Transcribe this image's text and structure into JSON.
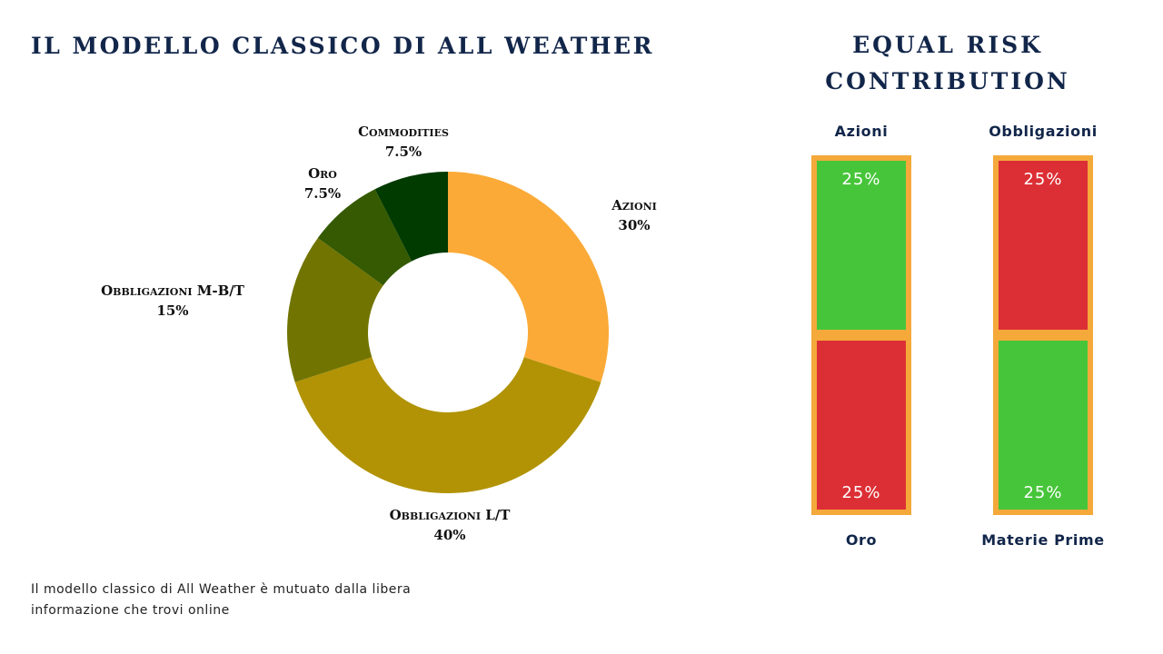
{
  "title_left": "IL MODELLO CLASSICO DI ALL WEATHER",
  "title_right": "EQUAL RISK CONTRIBUTION",
  "chart_data": [
    {
      "type": "pie",
      "variant": "donut",
      "start": "top",
      "direction": "clockwise",
      "slices": [
        {
          "label": "Azioni",
          "pct_label": "30%",
          "value": 30,
          "color": "#fbaa37"
        },
        {
          "label": "Obbligazioni L/T",
          "pct_label": "40%",
          "value": 40,
          "color": "#b19305"
        },
        {
          "label": "Obbligazioni M-B/T",
          "pct_label": "15%",
          "value": 15,
          "color": "#727402"
        },
        {
          "label": "Oro",
          "pct_label": "7.5%",
          "value": 7.5,
          "color": "#355a01"
        },
        {
          "label": "Commodities",
          "pct_label": "7.5%",
          "value": 7.5,
          "color": "#023b00"
        }
      ]
    },
    {
      "type": "table",
      "layout": "two stacked bars",
      "columns": [
        {
          "top_label": "Azioni",
          "bottom_label": "Oro",
          "cells": [
            {
              "value": "25%",
              "color": "#47c53a"
            },
            {
              "value": "25%",
              "color": "#dc2f35"
            }
          ]
        },
        {
          "top_label": "Obbligazioni",
          "bottom_label": "Materie Prime",
          "cells": [
            {
              "value": "25%",
              "color": "#dc2f35"
            },
            {
              "value": "25%",
              "color": "#47c53a"
            }
          ]
        }
      ],
      "frame_color": "#f4a93a"
    }
  ],
  "footnote": "Il modello classico di All Weather è mutuato dalla libera informazione che trovi online"
}
